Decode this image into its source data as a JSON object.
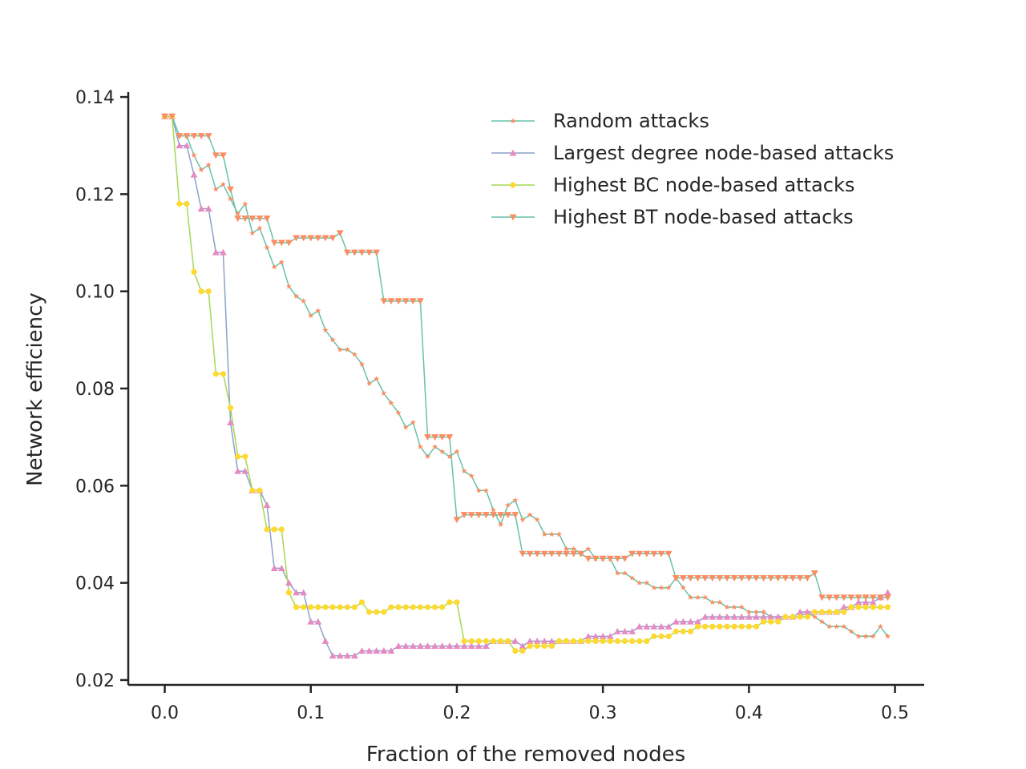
{
  "chart_data": {
    "type": "line",
    "title": "",
    "xlabel": "Fraction of the removed nodes",
    "ylabel": "Network efficiency",
    "xlim": [
      -0.025,
      0.52
    ],
    "ylim": [
      0.019,
      0.141
    ],
    "xticks": [
      0.0,
      0.1,
      0.2,
      0.3,
      0.4,
      0.5
    ],
    "xtick_labels": [
      "0.0",
      "0.1",
      "0.2",
      "0.3",
      "0.4",
      "0.5"
    ],
    "yticks": [
      0.02,
      0.04,
      0.06,
      0.08,
      0.1,
      0.12,
      0.14
    ],
    "ytick_labels": [
      "0.02",
      "0.04",
      "0.06",
      "0.08",
      "0.10",
      "0.12",
      "0.14"
    ],
    "grid": false,
    "legend_position": "top-right",
    "series": [
      {
        "name": "Random attacks",
        "line_color": "#66c2a5",
        "marker_color": "#fc8d62",
        "marker": "star",
        "x": [
          0.0,
          0.005,
          0.01,
          0.015,
          0.02,
          0.025,
          0.03,
          0.035,
          0.04,
          0.045,
          0.05,
          0.055,
          0.06,
          0.065,
          0.07,
          0.075,
          0.08,
          0.085,
          0.09,
          0.095,
          0.1,
          0.105,
          0.11,
          0.115,
          0.12,
          0.125,
          0.13,
          0.135,
          0.14,
          0.145,
          0.15,
          0.155,
          0.16,
          0.165,
          0.17,
          0.175,
          0.18,
          0.185,
          0.19,
          0.195,
          0.2,
          0.205,
          0.21,
          0.215,
          0.22,
          0.225,
          0.23,
          0.235,
          0.24,
          0.245,
          0.25,
          0.255,
          0.26,
          0.265,
          0.27,
          0.275,
          0.28,
          0.285,
          0.29,
          0.295,
          0.3,
          0.305,
          0.31,
          0.315,
          0.32,
          0.325,
          0.33,
          0.335,
          0.34,
          0.345,
          0.35,
          0.355,
          0.36,
          0.365,
          0.37,
          0.375,
          0.38,
          0.385,
          0.39,
          0.395,
          0.4,
          0.405,
          0.41,
          0.415,
          0.42,
          0.425,
          0.43,
          0.435,
          0.44,
          0.445,
          0.45,
          0.455,
          0.46,
          0.465,
          0.47,
          0.475,
          0.48,
          0.485,
          0.49,
          0.495
        ],
        "y": [
          0.136,
          0.136,
          0.132,
          0.132,
          0.128,
          0.125,
          0.126,
          0.121,
          0.122,
          0.119,
          0.116,
          0.118,
          0.112,
          0.113,
          0.109,
          0.105,
          0.106,
          0.101,
          0.099,
          0.098,
          0.095,
          0.096,
          0.092,
          0.09,
          0.088,
          0.088,
          0.087,
          0.085,
          0.081,
          0.082,
          0.079,
          0.077,
          0.075,
          0.072,
          0.073,
          0.068,
          0.066,
          0.068,
          0.067,
          0.066,
          0.067,
          0.063,
          0.062,
          0.059,
          0.059,
          0.055,
          0.052,
          0.056,
          0.057,
          0.053,
          0.054,
          0.053,
          0.05,
          0.05,
          0.05,
          0.047,
          0.047,
          0.046,
          0.047,
          0.045,
          0.045,
          0.045,
          0.042,
          0.042,
          0.041,
          0.04,
          0.04,
          0.039,
          0.039,
          0.039,
          0.041,
          0.039,
          0.037,
          0.037,
          0.037,
          0.036,
          0.036,
          0.035,
          0.035,
          0.035,
          0.034,
          0.034,
          0.034,
          0.033,
          0.033,
          0.033,
          0.033,
          0.033,
          0.034,
          0.033,
          0.032,
          0.031,
          0.031,
          0.031,
          0.03,
          0.029,
          0.029,
          0.029,
          0.031,
          0.029
        ]
      },
      {
        "name": "Largest degree node-based attacks",
        "line_color": "#8da0cb",
        "marker_color": "#e78ac3",
        "marker": "triangle-up",
        "x": [
          0.0,
          0.005,
          0.01,
          0.015,
          0.02,
          0.025,
          0.03,
          0.035,
          0.04,
          0.045,
          0.05,
          0.055,
          0.06,
          0.065,
          0.07,
          0.075,
          0.08,
          0.085,
          0.09,
          0.095,
          0.1,
          0.105,
          0.11,
          0.115,
          0.12,
          0.125,
          0.13,
          0.135,
          0.14,
          0.145,
          0.15,
          0.155,
          0.16,
          0.165,
          0.17,
          0.175,
          0.18,
          0.185,
          0.19,
          0.195,
          0.2,
          0.205,
          0.21,
          0.215,
          0.22,
          0.225,
          0.23,
          0.235,
          0.24,
          0.245,
          0.25,
          0.255,
          0.26,
          0.265,
          0.27,
          0.275,
          0.28,
          0.285,
          0.29,
          0.295,
          0.3,
          0.305,
          0.31,
          0.315,
          0.32,
          0.325,
          0.33,
          0.335,
          0.34,
          0.345,
          0.35,
          0.355,
          0.36,
          0.365,
          0.37,
          0.375,
          0.38,
          0.385,
          0.39,
          0.395,
          0.4,
          0.405,
          0.41,
          0.415,
          0.42,
          0.425,
          0.43,
          0.435,
          0.44,
          0.445,
          0.45,
          0.455,
          0.46,
          0.465,
          0.47,
          0.475,
          0.48,
          0.485,
          0.49,
          0.495
        ],
        "y": [
          0.136,
          0.136,
          0.13,
          0.13,
          0.124,
          0.117,
          0.117,
          0.108,
          0.108,
          0.073,
          0.063,
          0.063,
          0.059,
          0.059,
          0.056,
          0.043,
          0.043,
          0.04,
          0.038,
          0.038,
          0.032,
          0.032,
          0.028,
          0.025,
          0.025,
          0.025,
          0.025,
          0.026,
          0.026,
          0.026,
          0.026,
          0.026,
          0.027,
          0.027,
          0.027,
          0.027,
          0.027,
          0.027,
          0.027,
          0.027,
          0.027,
          0.027,
          0.027,
          0.027,
          0.027,
          0.028,
          0.028,
          0.028,
          0.028,
          0.027,
          0.028,
          0.028,
          0.028,
          0.028,
          0.028,
          0.028,
          0.028,
          0.028,
          0.029,
          0.029,
          0.029,
          0.029,
          0.03,
          0.03,
          0.03,
          0.031,
          0.031,
          0.031,
          0.031,
          0.031,
          0.032,
          0.032,
          0.032,
          0.032,
          0.033,
          0.033,
          0.033,
          0.033,
          0.033,
          0.033,
          0.033,
          0.033,
          0.033,
          0.033,
          0.033,
          0.033,
          0.033,
          0.034,
          0.034,
          0.034,
          0.034,
          0.034,
          0.034,
          0.035,
          0.035,
          0.036,
          0.036,
          0.036,
          0.037,
          0.038
        ]
      },
      {
        "name": "Highest BC node-based attacks",
        "line_color": "#a6d854",
        "marker_color": "#ffd92f",
        "marker": "circle",
        "x": [
          0.0,
          0.005,
          0.01,
          0.015,
          0.02,
          0.025,
          0.03,
          0.035,
          0.04,
          0.045,
          0.05,
          0.055,
          0.06,
          0.065,
          0.07,
          0.075,
          0.08,
          0.085,
          0.09,
          0.095,
          0.1,
          0.105,
          0.11,
          0.115,
          0.12,
          0.125,
          0.13,
          0.135,
          0.14,
          0.145,
          0.15,
          0.155,
          0.16,
          0.165,
          0.17,
          0.175,
          0.18,
          0.185,
          0.19,
          0.195,
          0.2,
          0.205,
          0.21,
          0.215,
          0.22,
          0.225,
          0.23,
          0.235,
          0.24,
          0.245,
          0.25,
          0.255,
          0.26,
          0.265,
          0.27,
          0.275,
          0.28,
          0.285,
          0.29,
          0.295,
          0.3,
          0.305,
          0.31,
          0.315,
          0.32,
          0.325,
          0.33,
          0.335,
          0.34,
          0.345,
          0.35,
          0.355,
          0.36,
          0.365,
          0.37,
          0.375,
          0.38,
          0.385,
          0.39,
          0.395,
          0.4,
          0.405,
          0.41,
          0.415,
          0.42,
          0.425,
          0.43,
          0.435,
          0.44,
          0.445,
          0.45,
          0.455,
          0.46,
          0.465,
          0.47,
          0.475,
          0.48,
          0.485,
          0.49,
          0.495
        ],
        "y": [
          0.136,
          0.136,
          0.118,
          0.118,
          0.104,
          0.1,
          0.1,
          0.083,
          0.083,
          0.076,
          0.066,
          0.066,
          0.059,
          0.059,
          0.051,
          0.051,
          0.051,
          0.038,
          0.035,
          0.035,
          0.035,
          0.035,
          0.035,
          0.035,
          0.035,
          0.035,
          0.035,
          0.036,
          0.034,
          0.034,
          0.034,
          0.035,
          0.035,
          0.035,
          0.035,
          0.035,
          0.035,
          0.035,
          0.035,
          0.036,
          0.036,
          0.028,
          0.028,
          0.028,
          0.028,
          0.028,
          0.028,
          0.028,
          0.026,
          0.026,
          0.027,
          0.027,
          0.027,
          0.027,
          0.028,
          0.028,
          0.028,
          0.028,
          0.028,
          0.028,
          0.028,
          0.028,
          0.028,
          0.028,
          0.028,
          0.028,
          0.028,
          0.029,
          0.029,
          0.029,
          0.03,
          0.03,
          0.03,
          0.031,
          0.031,
          0.031,
          0.031,
          0.031,
          0.031,
          0.031,
          0.031,
          0.031,
          0.032,
          0.032,
          0.032,
          0.033,
          0.033,
          0.033,
          0.033,
          0.034,
          0.034,
          0.034,
          0.034,
          0.034,
          0.035,
          0.035,
          0.035,
          0.035,
          0.035,
          0.035
        ]
      },
      {
        "name": "Highest BT node-based attacks",
        "line_color": "#66c2a5",
        "marker_color": "#fc8d62",
        "marker": "triangle-down",
        "x": [
          0.0,
          0.005,
          0.01,
          0.015,
          0.02,
          0.025,
          0.03,
          0.035,
          0.04,
          0.045,
          0.05,
          0.055,
          0.06,
          0.065,
          0.07,
          0.075,
          0.08,
          0.085,
          0.09,
          0.095,
          0.1,
          0.105,
          0.11,
          0.115,
          0.12,
          0.125,
          0.13,
          0.135,
          0.14,
          0.145,
          0.15,
          0.155,
          0.16,
          0.165,
          0.17,
          0.175,
          0.18,
          0.185,
          0.19,
          0.195,
          0.2,
          0.205,
          0.21,
          0.215,
          0.22,
          0.225,
          0.23,
          0.235,
          0.24,
          0.245,
          0.25,
          0.255,
          0.26,
          0.265,
          0.27,
          0.275,
          0.28,
          0.285,
          0.29,
          0.295,
          0.3,
          0.305,
          0.31,
          0.315,
          0.32,
          0.325,
          0.33,
          0.335,
          0.34,
          0.345,
          0.35,
          0.355,
          0.36,
          0.365,
          0.37,
          0.375,
          0.38,
          0.385,
          0.39,
          0.395,
          0.4,
          0.405,
          0.41,
          0.415,
          0.42,
          0.425,
          0.43,
          0.435,
          0.44,
          0.445,
          0.45,
          0.455,
          0.46,
          0.465,
          0.47,
          0.475,
          0.48,
          0.485,
          0.49,
          0.495
        ],
        "y": [
          0.136,
          0.136,
          0.132,
          0.132,
          0.132,
          0.132,
          0.132,
          0.128,
          0.128,
          0.121,
          0.115,
          0.115,
          0.115,
          0.115,
          0.115,
          0.11,
          0.11,
          0.11,
          0.111,
          0.111,
          0.111,
          0.111,
          0.111,
          0.111,
          0.112,
          0.108,
          0.108,
          0.108,
          0.108,
          0.108,
          0.098,
          0.098,
          0.098,
          0.098,
          0.098,
          0.098,
          0.07,
          0.07,
          0.07,
          0.07,
          0.053,
          0.054,
          0.054,
          0.054,
          0.054,
          0.054,
          0.054,
          0.054,
          0.054,
          0.046,
          0.046,
          0.046,
          0.046,
          0.046,
          0.046,
          0.046,
          0.046,
          0.046,
          0.045,
          0.045,
          0.045,
          0.045,
          0.045,
          0.045,
          0.046,
          0.046,
          0.046,
          0.046,
          0.046,
          0.046,
          0.041,
          0.041,
          0.041,
          0.041,
          0.041,
          0.041,
          0.041,
          0.041,
          0.041,
          0.041,
          0.041,
          0.041,
          0.041,
          0.041,
          0.041,
          0.041,
          0.041,
          0.041,
          0.041,
          0.042,
          0.037,
          0.037,
          0.037,
          0.037,
          0.037,
          0.037,
          0.037,
          0.037,
          0.037,
          0.037
        ]
      }
    ]
  }
}
